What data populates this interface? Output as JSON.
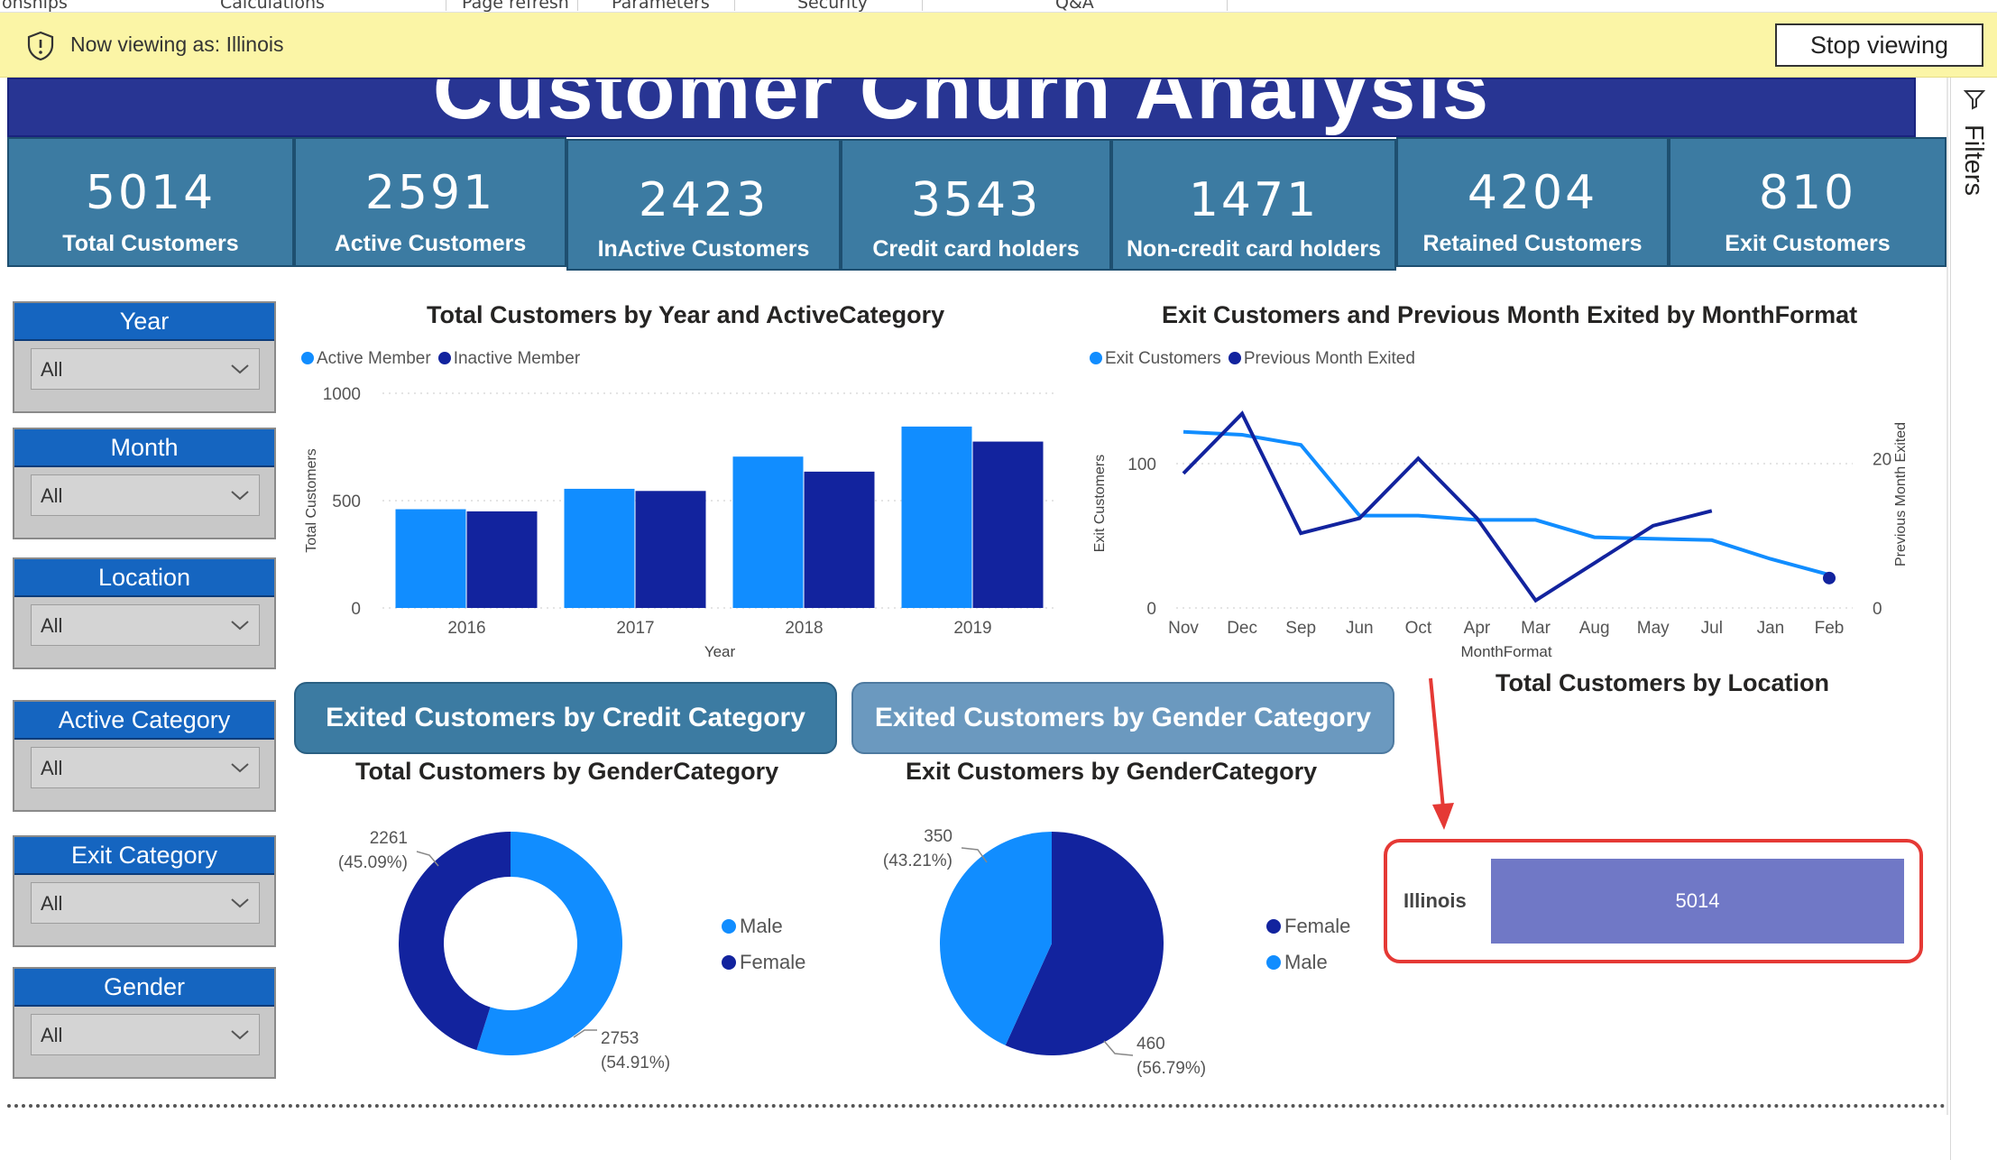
{
  "ribbon": {
    "items": [
      "onships",
      "Calculations",
      "Page refresh",
      "Parameters",
      "Security",
      "Q&A"
    ]
  },
  "banner": {
    "text": "Now viewing as: Illinois",
    "stop_label": "Stop viewing",
    "icon": "shield-icon"
  },
  "filters_pane": {
    "label": "Filters",
    "icon": "filter-icon"
  },
  "report": {
    "title": "Customer Churn Analysis"
  },
  "kpis": [
    {
      "value": "5014",
      "label": "Total Customers"
    },
    {
      "value": "2591",
      "label": "Active Customers"
    },
    {
      "value": "2423",
      "label": "InActive Customers"
    },
    {
      "value": "3543",
      "label": "Credit card holders"
    },
    {
      "value": "1471",
      "label": "Non-credit card holders"
    },
    {
      "value": "4204",
      "label": "Retained Customers"
    },
    {
      "value": "810",
      "label": "Exit Customers"
    }
  ],
  "slicers": [
    {
      "title": "Year",
      "value": "All"
    },
    {
      "title": "Month",
      "value": "All"
    },
    {
      "title": "Location",
      "value": "All"
    },
    {
      "title": "Active Category",
      "value": "All"
    },
    {
      "title": "Exit Category",
      "value": "All"
    },
    {
      "title": "Gender",
      "value": "All"
    }
  ],
  "bookmarks": {
    "credit": "Exited Customers by Credit Category",
    "gender": "Exited Customers by Gender Category"
  },
  "colors": {
    "light_blue": "#118dff",
    "dark_blue": "#12239e",
    "kpi_bg": "#3c7ba2",
    "title_bg": "#283593",
    "location_bar": "#7078c6",
    "highlight": "#e53935"
  },
  "chart_data": [
    {
      "type": "bar",
      "title": "Total Customers by Year and ActiveCategory",
      "xlabel": "Year",
      "ylabel": "Total Customers",
      "categories": [
        "2016",
        "2017",
        "2018",
        "2019"
      ],
      "series": [
        {
          "name": "Active Member",
          "values": [
            460,
            555,
            705,
            845
          ]
        },
        {
          "name": "Inactive Member",
          "values": [
            450,
            545,
            635,
            775
          ]
        }
      ],
      "ylim": [
        0,
        1000
      ],
      "yticks": [
        "0",
        "500",
        "1000"
      ],
      "legend": "top-left",
      "grid": true
    },
    {
      "type": "line",
      "title": "Exit Customers and Previous Month Exited by MonthFormat",
      "xlabel": "MonthFormat",
      "ylabel": "Exit Customers",
      "y2label": "Previous Month Exited",
      "categories": [
        "Nov",
        "Dec",
        "Sep",
        "Jun",
        "Oct",
        "Apr",
        "Mar",
        "Aug",
        "May",
        "Jul",
        "Jan",
        "Feb"
      ],
      "series": [
        {
          "name": "Exit Customers",
          "axis": "left",
          "values": [
            122,
            120,
            113,
            64,
            64,
            61,
            61,
            49,
            48,
            47,
            34,
            23
          ]
        },
        {
          "name": "Previous Month Exited",
          "axis": "right",
          "values": [
            18,
            26,
            10,
            12,
            20,
            12,
            1,
            6,
            11,
            13,
            null,
            4
          ]
        }
      ],
      "ylim": [
        0,
        145
      ],
      "y2lim": [
        0,
        28
      ],
      "yticks": [
        "0",
        "100"
      ],
      "y2ticks": [
        "0",
        "20"
      ],
      "legend": "top-left"
    },
    {
      "type": "pie",
      "title": "Total Customers by GenderCategory",
      "donut": true,
      "slices": [
        {
          "name": "Male",
          "value": 2753,
          "label": "2753",
          "pct": "(54.91%)"
        },
        {
          "name": "Female",
          "value": 2261,
          "label": "2261",
          "pct": "(45.09%)"
        }
      ],
      "legend": "right"
    },
    {
      "type": "pie",
      "title": "Exit Customers by GenderCategory",
      "donut": false,
      "slices": [
        {
          "name": "Female",
          "value": 460,
          "label": "460",
          "pct": "(56.79%)"
        },
        {
          "name": "Male",
          "value": 350,
          "label": "350",
          "pct": "(43.21%)"
        }
      ],
      "legend": "right"
    },
    {
      "type": "bar",
      "title": "Total Customers by Location",
      "categories": [
        "Illinois"
      ],
      "values": [
        5014
      ],
      "labels": [
        "5014"
      ]
    }
  ]
}
